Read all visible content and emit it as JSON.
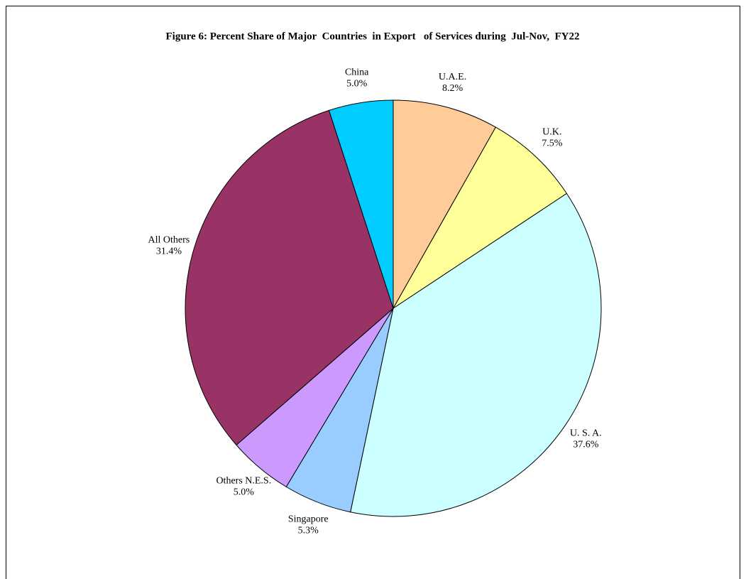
{
  "chart_data": {
    "type": "pie",
    "title": "Figure 6: Percent Share of Major  Countries  in Export   of Services during  Jul-Nov,  FY22",
    "categories": [
      "U.A.E.",
      "U.K.",
      "U. S. A.",
      "Singapore",
      "Others N.E.S.",
      "All Others",
      "China"
    ],
    "values": [
      8.2,
      7.5,
      37.6,
      5.3,
      5.0,
      31.4,
      5.0
    ],
    "value_labels": [
      "8.2%",
      "7.5%",
      "37.6%",
      "5.3%",
      "5.0%",
      "31.4%",
      "5.0%"
    ],
    "colors": [
      "#ffcc99",
      "#ffff99",
      "#ccffff",
      "#99ccff",
      "#cc99ff",
      "#993366",
      "#00ccff"
    ]
  }
}
